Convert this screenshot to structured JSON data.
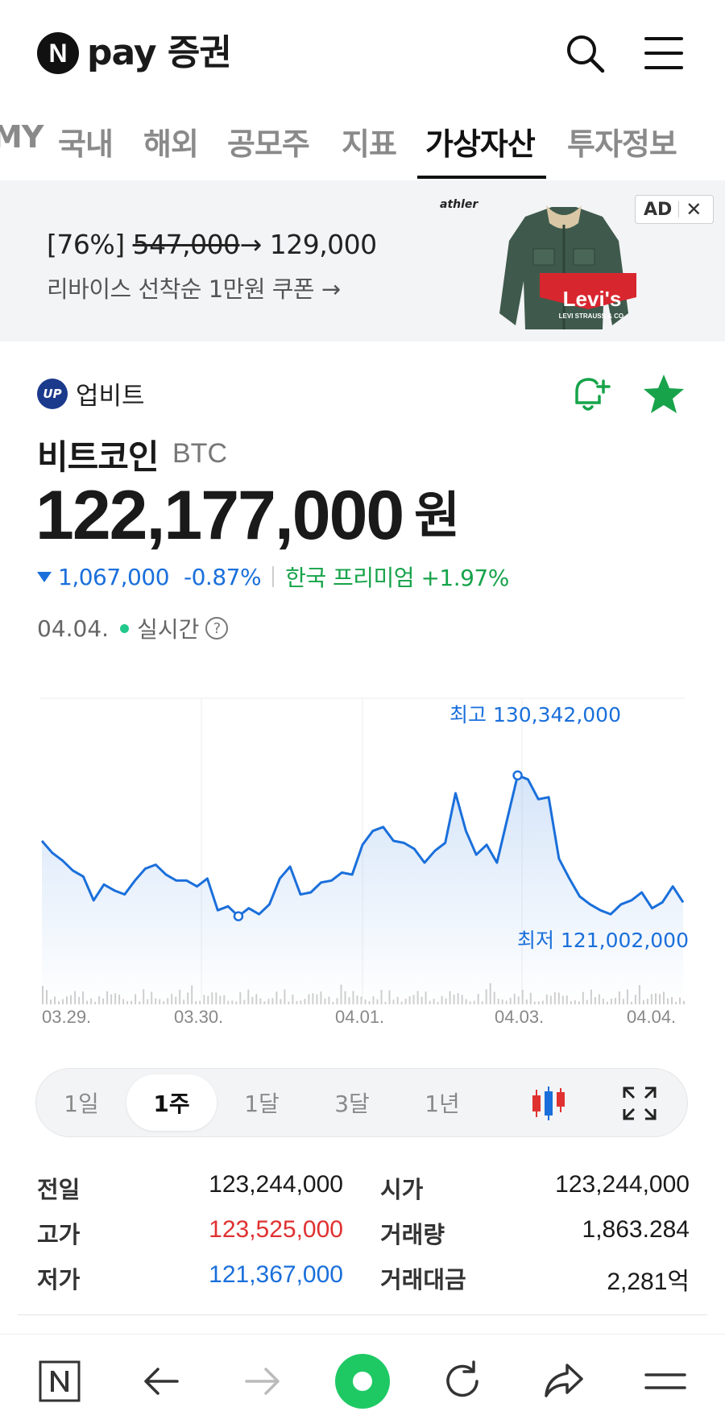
{
  "header": {
    "logo_letter": "N",
    "logo_text": "pay 증권",
    "icons": [
      "search-icon",
      "hamburger-menu-icon"
    ]
  },
  "tabs": [
    {
      "label": "MY",
      "active": false
    },
    {
      "label": "국내",
      "active": false
    },
    {
      "label": "해외",
      "active": false
    },
    {
      "label": "공모주",
      "active": false
    },
    {
      "label": "지표",
      "active": false
    },
    {
      "label": "가상자산",
      "active": true
    },
    {
      "label": "투자정보",
      "active": false
    }
  ],
  "ad": {
    "title_prefix": "[76%] ",
    "title_old": "547,000",
    "title_new": "→ 129,000",
    "subtitle": "리바이스 선착순 1만원 쿠폰  →",
    "brand": "athler",
    "product_logo": "Levi's",
    "product_logo_sub": "LEVI STRAUSS & CO.",
    "badge": "AD",
    "close": "✕"
  },
  "coin": {
    "exchange": "업비트",
    "exchange_logo": "UP",
    "name": "비트코인",
    "symbol": "BTC",
    "price": "122,177,000",
    "unit": "원",
    "change": "1,067,000",
    "change_pct": "-0.87%",
    "premium": "한국 프리미엄 +1.97%",
    "date": "04.04.",
    "realtime": "실시간",
    "help": "?"
  },
  "chart_data": {
    "type": "area",
    "high_label": "최고 130,342,000",
    "low_label": "최저 121,002,000",
    "x_ticks": [
      "03.29.",
      "03.30.",
      "04.01.",
      "04.03.",
      "04.04."
    ],
    "high": 130342000,
    "low": 121002000,
    "values": [
      124900000,
      124300000,
      123900000,
      123400000,
      123100000,
      121900000,
      122700000,
      122400000,
      122200000,
      122900000,
      123500000,
      123700000,
      123200000,
      122900000,
      122900000,
      122600000,
      123000000,
      121400000,
      121600000,
      121100000,
      121500000,
      121200000,
      121700000,
      123000000,
      123600000,
      122200000,
      122300000,
      122800000,
      122900000,
      123300000,
      123200000,
      124700000,
      125400000,
      125600000,
      124900000,
      124800000,
      124500000,
      123800000,
      124400000,
      124800000,
      127300000,
      125400000,
      124200000,
      124700000,
      123800000,
      126000000,
      128200000,
      128000000,
      127000000,
      127100000,
      124000000,
      123000000,
      122100000,
      121700000,
      121400000,
      121200000,
      121700000,
      121900000,
      122300000,
      121500000,
      121800000,
      122600000,
      121800000
    ]
  },
  "period": {
    "buttons": [
      {
        "label": "1일",
        "active": false
      },
      {
        "label": "1주",
        "active": true
      },
      {
        "label": "1달",
        "active": false
      },
      {
        "label": "3달",
        "active": false
      },
      {
        "label": "1년",
        "active": false
      }
    ],
    "icons": [
      "candlestick-chart-icon",
      "fullscreen-icon"
    ]
  },
  "stats": {
    "prev_label": "전일",
    "prev_value": "123,244,000",
    "open_label": "시가",
    "open_value": "123,244,000",
    "high_label": "고가",
    "high_value": "123,525,000",
    "volume_label": "거래량",
    "volume_value": "1,863.284",
    "low_label": "저가",
    "low_value": "121,367,000",
    "amount_label": "거래대금",
    "amount_value": "2,281억"
  },
  "bottom_bar": {
    "icons": [
      "naver-home-icon",
      "back-arrow-icon",
      "forward-arrow-icon",
      "green-dot-icon",
      "refresh-icon",
      "share-icon",
      "menu-icon"
    ]
  },
  "colors": {
    "accent_green": "#16a34a",
    "down_blue": "#1a6fdb",
    "up_red": "#e03131",
    "star_green": "#17a34a"
  }
}
